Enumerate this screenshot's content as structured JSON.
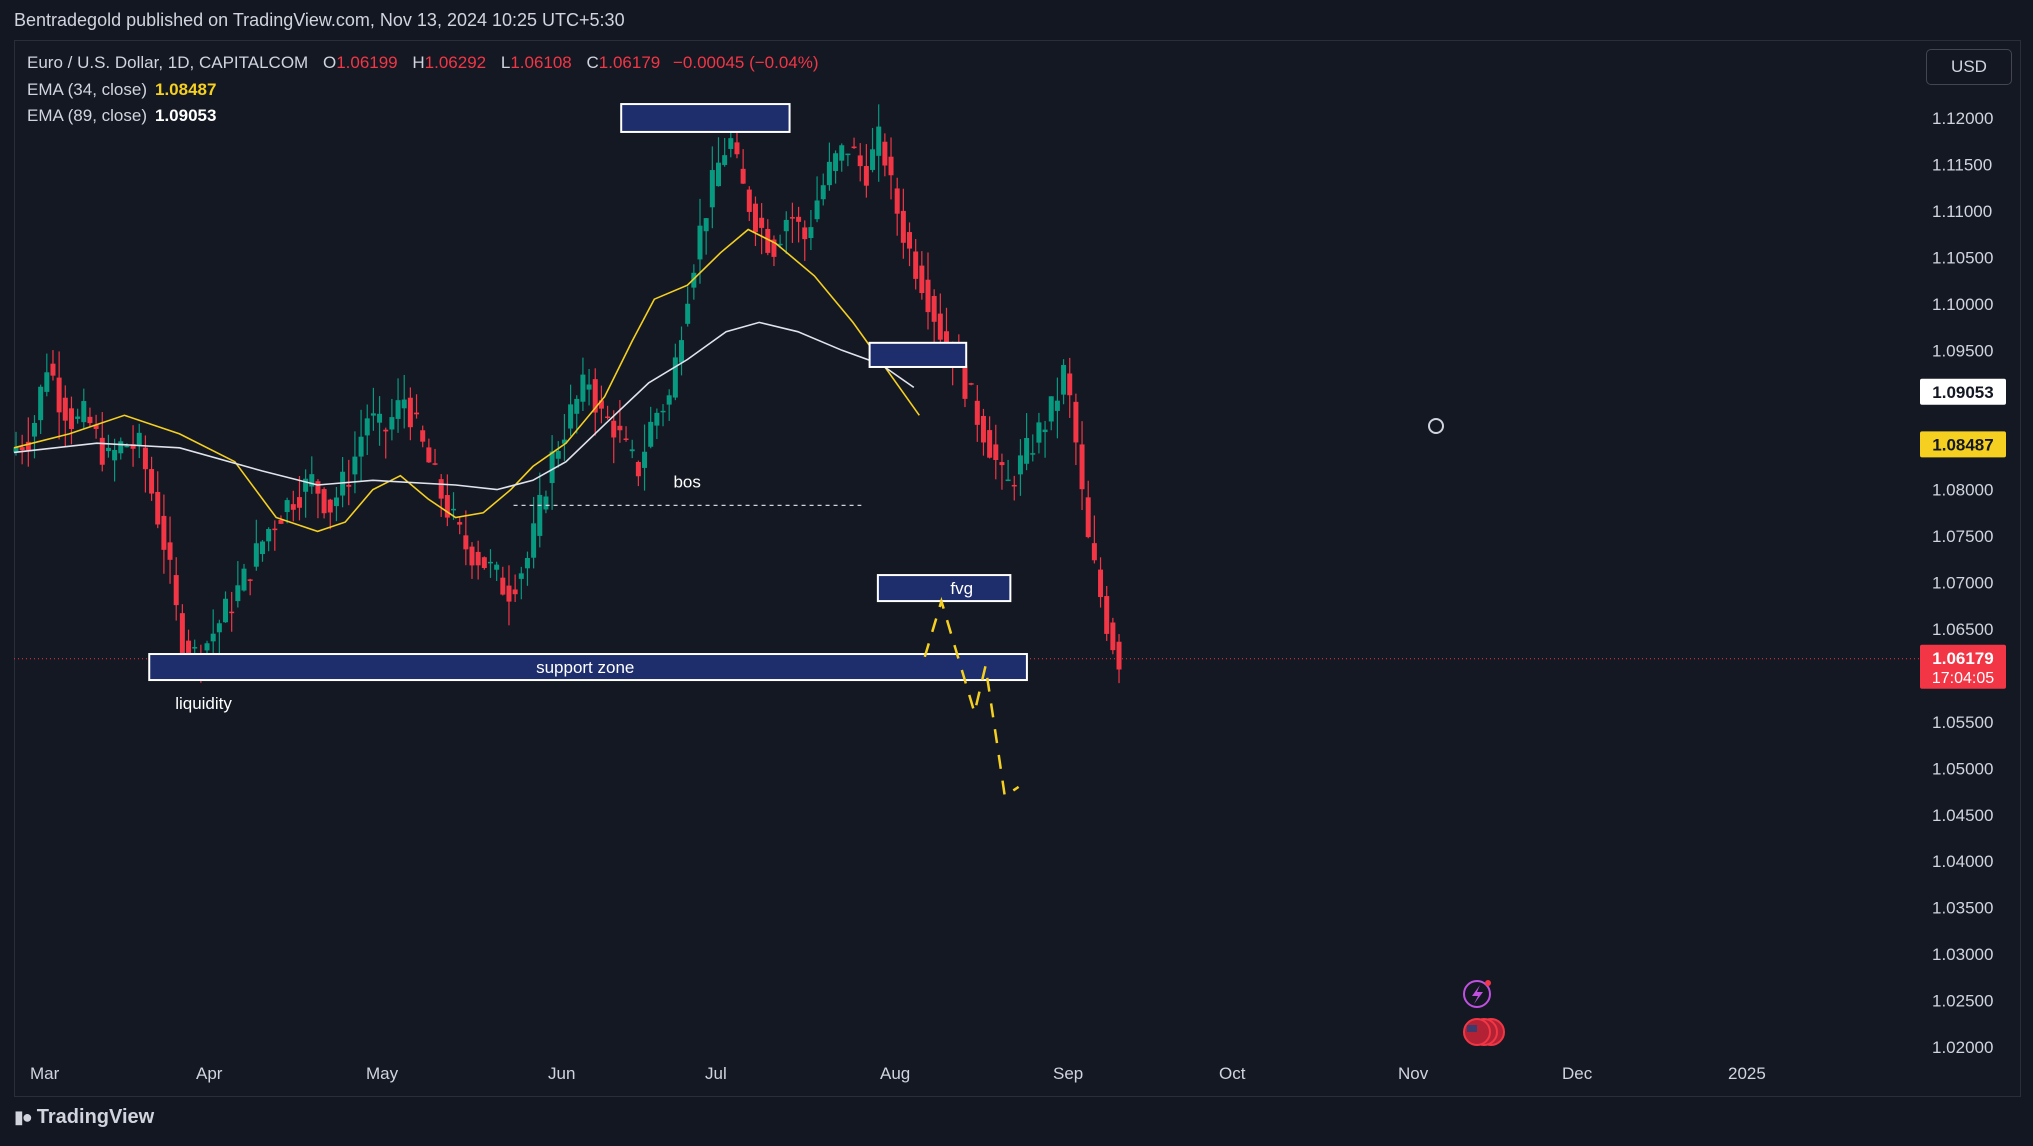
{
  "publish_line": "Bentradegold published on TradingView.com, Nov 13, 2024 10:25 UTC+5:30",
  "legend": {
    "symbol": "Euro / U.S. Dollar, 1D, CAPITALCOM",
    "open_key": "O",
    "open": "1.06199",
    "high_key": "H",
    "high": "1.06292",
    "low_key": "L",
    "low": "1.06108",
    "close_key": "C",
    "close": "1.06179",
    "change": "−0.00045 (−0.04%)",
    "ema34_label": "EMA (34, close)",
    "ema34_value": "1.08487",
    "ema89_label": "EMA (89, close)",
    "ema89_value": "1.09053"
  },
  "currency_button": "USD",
  "brand": "TradingView",
  "colors": {
    "up": "#089981",
    "down": "#f23645",
    "ema34": "#f5d020",
    "ema89": "#e0e3eb",
    "zone_fill": "#1e2d6b",
    "projection": "#f5d020"
  },
  "chart_data": {
    "type": "candlestick",
    "ylim": [
      1.02,
      1.1235
    ],
    "y_ticks": [
      "1.12000",
      "1.11500",
      "1.11000",
      "1.10500",
      "1.10000",
      "1.09500",
      "1.09000",
      "1.08500",
      "1.08000",
      "1.07500",
      "1.07000",
      "1.06500",
      "1.06000",
      "1.05500",
      "1.05000",
      "1.04500",
      "1.04000",
      "1.03500",
      "1.03000",
      "1.02500",
      "1.02000"
    ],
    "x_ticks": [
      "Mar",
      "Apr",
      "May",
      "Jun",
      "Jul",
      "Aug",
      "Sep",
      "Oct",
      "Nov",
      "Dec",
      "2025"
    ],
    "price_badges": [
      {
        "value": "1.09053",
        "sub": "",
        "kind": "ema89"
      },
      {
        "value": "1.08487",
        "sub": "",
        "kind": "ema34"
      },
      {
        "value": "1.06179",
        "sub": "17:04:05",
        "kind": "last"
      }
    ],
    "series": [
      {
        "name": "EMA (34, close)",
        "points": [
          [
            0,
            1.0845
          ],
          [
            20,
            1.086
          ],
          [
            40,
            1.088
          ],
          [
            60,
            1.086
          ],
          [
            80,
            1.083
          ],
          [
            95,
            1.077
          ],
          [
            110,
            1.0755
          ],
          [
            120,
            1.0765
          ],
          [
            130,
            1.08
          ],
          [
            140,
            1.0815
          ],
          [
            150,
            1.079
          ],
          [
            160,
            1.077
          ],
          [
            170,
            1.0775
          ],
          [
            180,
            1.08
          ],
          [
            188,
            1.0825
          ],
          [
            200,
            1.085
          ],
          [
            214,
            1.09
          ],
          [
            224,
            1.096
          ],
          [
            232,
            1.1005
          ],
          [
            244,
            1.102
          ],
          [
            256,
            1.1055
          ],
          [
            266,
            1.108
          ],
          [
            276,
            1.1065
          ],
          [
            290,
            1.103
          ],
          [
            304,
            1.098
          ],
          [
            316,
            1.093
          ],
          [
            328,
            1.088
          ]
        ]
      },
      {
        "name": "EMA (89, close)",
        "points": [
          [
            0,
            1.084
          ],
          [
            30,
            1.085
          ],
          [
            60,
            1.0845
          ],
          [
            90,
            1.082
          ],
          [
            110,
            1.0805
          ],
          [
            130,
            1.081
          ],
          [
            160,
            1.0805
          ],
          [
            175,
            1.08
          ],
          [
            188,
            1.081
          ],
          [
            200,
            1.083
          ],
          [
            214,
            1.087
          ],
          [
            230,
            1.0915
          ],
          [
            244,
            1.094
          ],
          [
            258,
            1.097
          ],
          [
            270,
            1.098
          ],
          [
            284,
            1.097
          ],
          [
            300,
            1.095
          ],
          [
            314,
            1.0935
          ],
          [
            326,
            1.091
          ]
        ]
      }
    ],
    "annotations": [
      {
        "kind": "box",
        "label": "",
        "t0": 220,
        "t1": 281,
        "y0": 1.1185,
        "y1": 1.1215
      },
      {
        "kind": "box",
        "label": "",
        "t0": 310,
        "t1": 345,
        "y0": 1.0932,
        "y1": 1.0958
      },
      {
        "kind": "box",
        "label": "fvg",
        "t0": 313,
        "t1": 361,
        "y0": 1.068,
        "y1": 1.0708
      },
      {
        "kind": "box",
        "label": "support zone",
        "t0": 49,
        "t1": 367,
        "y0": 1.0595,
        "y1": 1.0623
      },
      {
        "kind": "dashed_line",
        "label": "bos",
        "t0": 181,
        "t1": 307,
        "y": 1.0783
      },
      {
        "kind": "text",
        "label": "liquidity",
        "t": 70,
        "y": 1.0592
      },
      {
        "kind": "projection",
        "points": [
          [
            330,
            1.062
          ],
          [
            336,
            1.068
          ],
          [
            342,
            1.062
          ],
          [
            348,
            1.056
          ],
          [
            352,
            1.061
          ],
          [
            356,
            1.053
          ],
          [
            359,
            1.047
          ],
          [
            364,
            1.048
          ]
        ]
      }
    ]
  }
}
